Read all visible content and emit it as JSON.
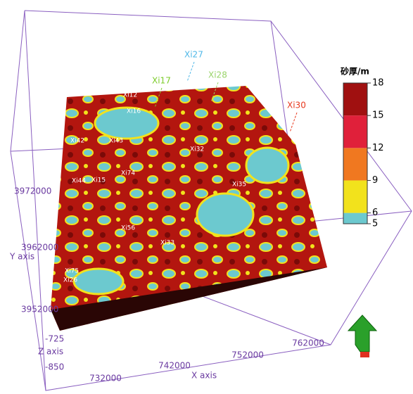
{
  "axes": {
    "x_label": "X axis",
    "y_label": "Y axis",
    "z_label": "Z axis",
    "x_ticks": [
      "732000",
      "742000",
      "752000",
      "762000"
    ],
    "y_ticks": [
      "3972000",
      "3962000",
      "3952000"
    ],
    "z_ticks": [
      "-725",
      "-850"
    ]
  },
  "wells_top": [
    {
      "name": "Xi17",
      "color": "#7ccc2a"
    },
    {
      "name": "Xi27",
      "color": "#4fb8e8"
    },
    {
      "name": "Xi28",
      "color": "#9ad46a"
    },
    {
      "name": "Xi30",
      "color": "#e8381e"
    }
  ],
  "wells_surface": [
    "Xi12",
    "Xi16",
    "Xi42",
    "Xi43",
    "Xi44",
    "Xi15",
    "Xi74",
    "Xi32",
    "Xi35",
    "Xi56",
    "Xi33",
    "Xi75",
    "Xi26"
  ],
  "colorbar": {
    "title": "砂厚/m",
    "lim": [
      5,
      18
    ],
    "ticks": [
      5,
      6,
      9,
      12,
      15,
      18
    ],
    "colors": [
      "#6cc9cf",
      "#f2e21c",
      "#f07820",
      "#e0203a",
      "#a01010"
    ]
  }
}
